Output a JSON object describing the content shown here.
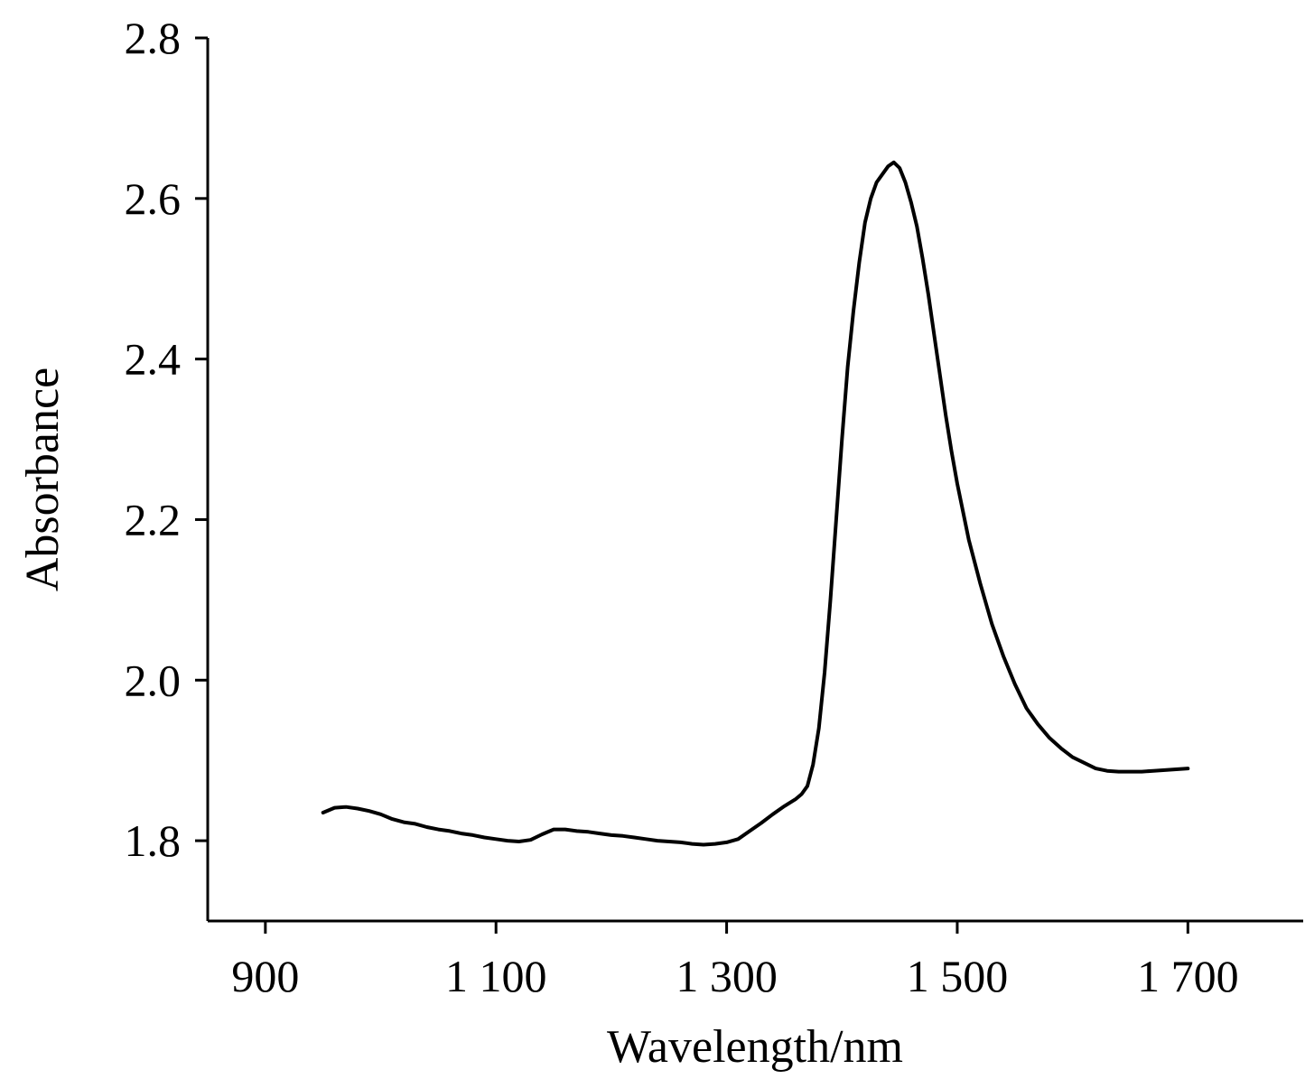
{
  "chart_data": {
    "type": "line",
    "title": "",
    "xlabel": "Wavelength/nm",
    "ylabel": "Absorbance",
    "xlim": [
      850,
      1800
    ],
    "ylim": [
      1.7,
      2.8
    ],
    "xticks": [
      900,
      1100,
      1300,
      1500,
      1700
    ],
    "xtick_labels": [
      "900",
      "1 100",
      "1 300",
      "1 500",
      "1 700"
    ],
    "yticks": [
      1.8,
      2.0,
      2.2,
      2.4,
      2.6,
      2.8
    ],
    "ytick_labels": [
      "1.8",
      "2.0",
      "2.2",
      "2.4",
      "2.6",
      "2.8"
    ],
    "grid": false,
    "legend": "none",
    "line_color": "#000000",
    "series": [
      {
        "x": [
          950,
          960,
          970,
          980,
          990,
          1000,
          1010,
          1020,
          1030,
          1040,
          1050,
          1060,
          1070,
          1080,
          1090,
          1100,
          1110,
          1120,
          1130,
          1140,
          1150,
          1160,
          1170,
          1180,
          1190,
          1200,
          1210,
          1220,
          1230,
          1240,
          1250,
          1260,
          1270,
          1280,
          1290,
          1300,
          1310,
          1320,
          1330,
          1340,
          1350,
          1360,
          1365,
          1370,
          1375,
          1380,
          1385,
          1390,
          1395,
          1400,
          1405,
          1410,
          1415,
          1420,
          1425,
          1430,
          1435,
          1440,
          1445,
          1450,
          1455,
          1460,
          1465,
          1470,
          1475,
          1480,
          1485,
          1490,
          1495,
          1500,
          1510,
          1520,
          1530,
          1540,
          1550,
          1560,
          1570,
          1580,
          1590,
          1600,
          1610,
          1620,
          1630,
          1640,
          1650,
          1660,
          1670,
          1680,
          1690,
          1700
        ],
        "y": [
          1.835,
          1.841,
          1.842,
          1.84,
          1.837,
          1.833,
          1.827,
          1.823,
          1.821,
          1.817,
          1.814,
          1.812,
          1.809,
          1.807,
          1.804,
          1.802,
          1.8,
          1.799,
          1.801,
          1.808,
          1.814,
          1.814,
          1.812,
          1.811,
          1.809,
          1.807,
          1.806,
          1.804,
          1.802,
          1.8,
          1.799,
          1.798,
          1.796,
          1.795,
          1.796,
          1.798,
          1.802,
          1.812,
          1.822,
          1.833,
          1.843,
          1.852,
          1.858,
          1.868,
          1.895,
          1.94,
          2.01,
          2.1,
          2.2,
          2.3,
          2.39,
          2.46,
          2.52,
          2.57,
          2.6,
          2.62,
          2.63,
          2.64,
          2.645,
          2.638,
          2.62,
          2.595,
          2.565,
          2.525,
          2.48,
          2.43,
          2.38,
          2.33,
          2.285,
          2.245,
          2.175,
          2.12,
          2.07,
          2.03,
          1.995,
          1.965,
          1.945,
          1.928,
          1.915,
          1.904,
          1.897,
          1.89,
          1.887,
          1.886,
          1.886,
          1.886,
          1.887,
          1.888,
          1.889,
          1.89
        ]
      }
    ]
  }
}
